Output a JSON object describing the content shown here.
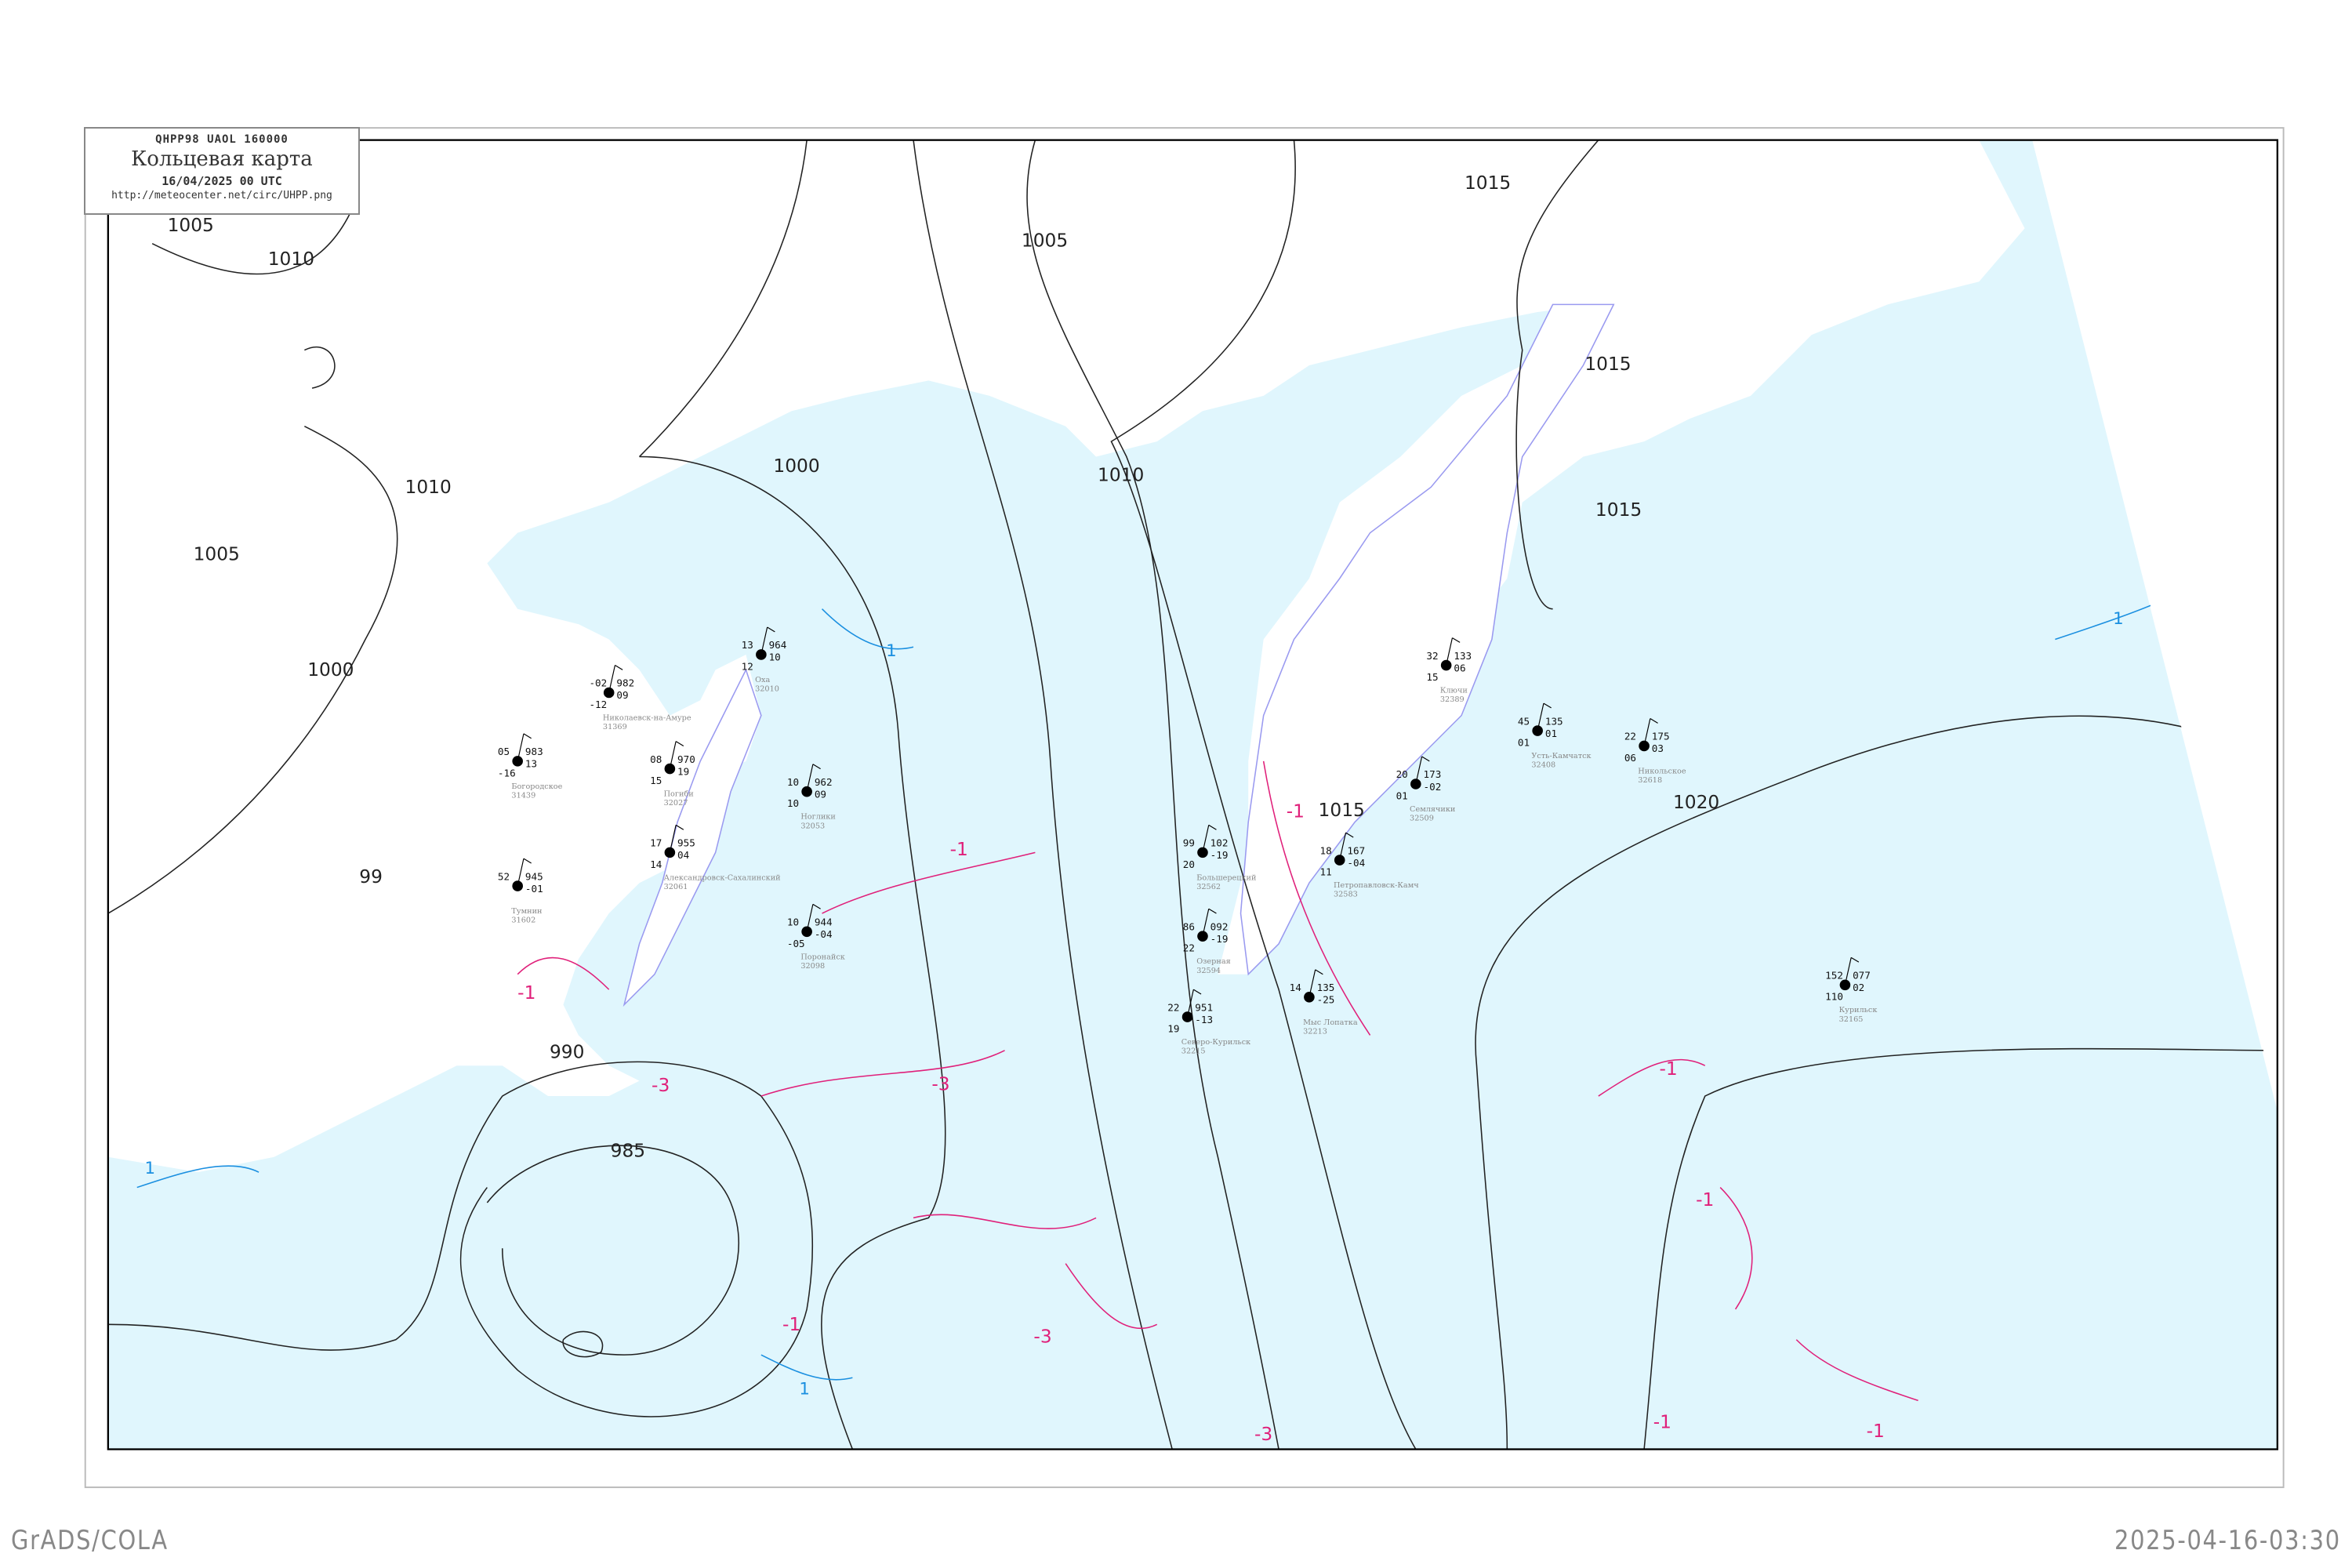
{
  "header": {
    "code_line": "QHPP98   UAOL   160000",
    "title": "Кольцевая карта",
    "datetime": "16/04/2025 00 UTC",
    "url": "http://meteocenter.net/circ/UHPP.png"
  },
  "footer": {
    "left": "GrADS/COLA",
    "right": "2025-04-16-03:30"
  },
  "colors": {
    "sea": "#e0f6fd",
    "isobar": "#222222",
    "isotherm": "#e0207a",
    "zero_isotherm": "#1a8fe0",
    "coastline": "#9a9af0"
  },
  "isobar_labels": [
    "1005",
    "1010",
    "1010",
    "1005",
    "1000",
    "1000",
    "1005",
    "1010",
    "1015",
    "1015",
    "1015",
    "1020",
    "1015",
    "99",
    "990",
    "985"
  ],
  "isotherm_labels": [
    "-1",
    "-1",
    "-1",
    "-3",
    "-1",
    "-1",
    "-1",
    "-3",
    "-3",
    "-3",
    "-1",
    "-1"
  ],
  "zero_labels": [
    "1",
    "1",
    "1",
    "1"
  ],
  "stations": [
    {
      "name": "Николаевск-на-Амуре",
      "id": "31369",
      "p": "982",
      "t": "-02",
      "td": "-12",
      "dp": "09"
    },
    {
      "name": "Оха",
      "id": "32010",
      "p": "964",
      "t": "13",
      "td": "12",
      "dp": "10"
    },
    {
      "name": "Богородское",
      "id": "31439",
      "p": "983",
      "t": "05",
      "td": "-16",
      "dp": "13"
    },
    {
      "name": "Погиби",
      "id": "32027",
      "p": "970",
      "t": "08",
      "td": "15",
      "dp": "19"
    },
    {
      "name": "Ноглики",
      "id": "32053",
      "p": "962",
      "t": "10",
      "td": "10",
      "dp": "09"
    },
    {
      "name": "Александровск-Сахалинский",
      "id": "32061",
      "p": "955",
      "t": "17",
      "td": "14",
      "dp": "04"
    },
    {
      "name": "Большерецкий",
      "id": "32562",
      "p": "102",
      "t": "99",
      "td": "20",
      "dp": "-19"
    },
    {
      "name": "Петропавловск-Камч",
      "id": "32583",
      "p": "167",
      "t": "18",
      "td": "11",
      "dp": "-04"
    },
    {
      "name": "Семлячики",
      "id": "32509",
      "p": "173",
      "t": "20",
      "td": "01",
      "dp": "-02"
    },
    {
      "name": "Озерная",
      "id": "32594",
      "p": "092",
      "t": "86",
      "td": "22",
      "dp": "-19"
    },
    {
      "name": "Мыс Лопатка",
      "id": "32213",
      "p": "135",
      "t": "14",
      "td": "",
      "dp": "-25"
    },
    {
      "name": "Северо-Курильск",
      "id": "32215",
      "p": "951",
      "t": "22",
      "td": "19",
      "dp": "-13"
    },
    {
      "name": "Тумнин",
      "id": "31602",
      "p": "945",
      "t": "52",
      "td": "",
      "dp": "-01"
    },
    {
      "name": "Поронайск",
      "id": "32098",
      "p": "944",
      "t": "10",
      "td": "-05",
      "dp": "-04"
    },
    {
      "name": "Ключи",
      "id": "32389",
      "p": "133",
      "t": "32",
      "td": "15",
      "dp": "06"
    },
    {
      "name": "Усть-Камчатск",
      "id": "32408",
      "p": "135",
      "t": "45",
      "td": "01",
      "dp": "01"
    },
    {
      "name": "Никольское",
      "id": "32618",
      "p": "175",
      "t": "22",
      "td": "06",
      "dp": "03"
    },
    {
      "name": "Курильск",
      "id": "32165",
      "p": "077",
      "t": "152",
      "td": "110",
      "dp": "02"
    }
  ]
}
